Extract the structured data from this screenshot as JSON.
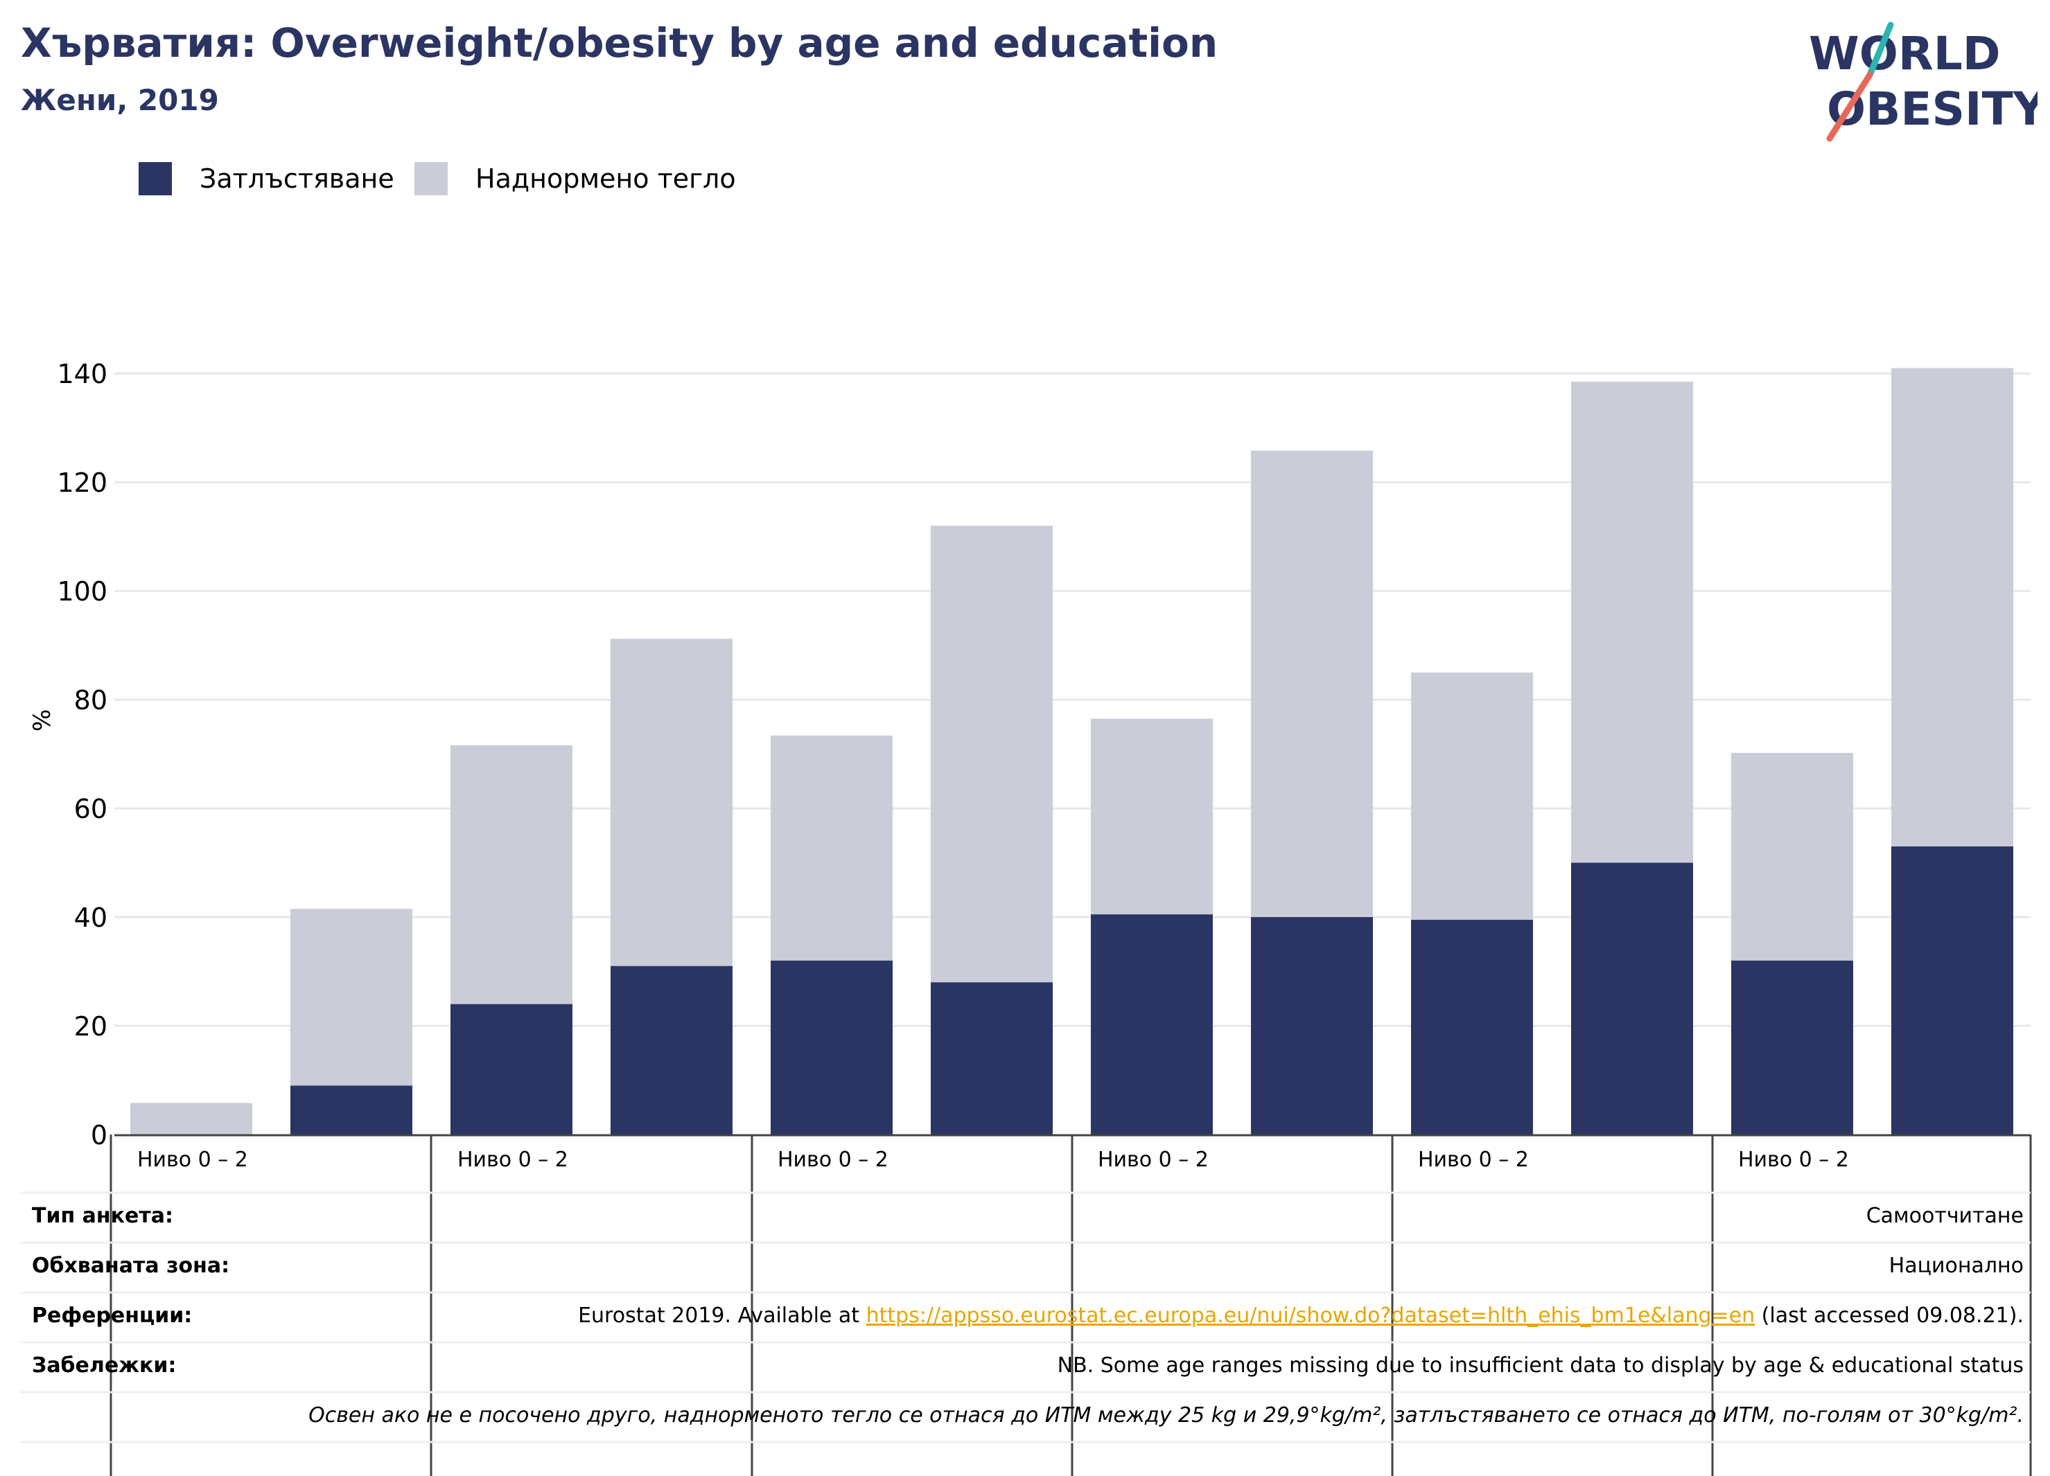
{
  "header": {
    "title": "Хърватия: Overweight/obesity by age and education",
    "subtitle": "Жени, 2019"
  },
  "logo": {
    "line1": "WORLD",
    "line2": "OBESITY"
  },
  "colors": {
    "obesity": "#2a3563",
    "overweight": "#cacdd8",
    "title": "#2a3563",
    "link": "#e8a600",
    "grid": "#e6e8ee",
    "logo_teal": "#2ab5b0",
    "logo_coral": "#e8675a"
  },
  "legend": {
    "obesity_label": "Затлъстяване",
    "overweight_label": "Наднормено тегло"
  },
  "chart_data": {
    "type": "bar",
    "stacked": true,
    "ylabel": "%",
    "ylim": [
      0,
      145
    ],
    "yticks": [
      0,
      20,
      40,
      60,
      80,
      100,
      120,
      140
    ],
    "grid": true,
    "legend_position": "top-left",
    "categories": [
      "",
      "",
      "",
      "",
      "",
      "",
      "",
      "",
      "",
      "",
      "",
      ""
    ],
    "group_labels": [
      "Ниво 0 – 2",
      "Ниво 0 – 2",
      "Ниво 0 – 2",
      "Ниво 0 – 2",
      "Ниво 0 – 2",
      "Ниво 0 – 2"
    ],
    "series": [
      {
        "name": "Затлъстяване",
        "values": [
          0,
          9,
          24,
          31,
          32,
          28,
          40.5,
          40,
          39.5,
          50,
          32,
          53
        ]
      },
      {
        "name": "Наднормено тегло",
        "values": [
          5.8,
          32.5,
          47.6,
          60.2,
          41.4,
          84,
          36,
          85.8,
          45.5,
          88.5,
          38.2,
          88
        ]
      }
    ]
  },
  "info_table": {
    "rows": [
      {
        "label": "Тип анкета:",
        "value": "Самоотчитане"
      },
      {
        "label": "Обхваната зона:",
        "value": "Национално"
      },
      {
        "label": "Референции:",
        "value_before": "Eurostat 2019. Available at ",
        "link": "https://appsso.eurostat.ec.europa.eu/nui/show.do?dataset=hlth_ehis_bm1e&lang=en",
        "value_after": " (last accessed 09.08.21)."
      },
      {
        "label": "Забележки:",
        "value": "NB. Some age ranges missing due to insufficient data to display by age & educational status"
      },
      {
        "label": "",
        "value": "Освен ако не е посочено друго, наднорменото тегло се отнася до ИТМ между 25 kg и 29,9°kg/m², затлъстяването се отнася до ИТМ, по-голям от 30°kg/m²."
      }
    ]
  }
}
